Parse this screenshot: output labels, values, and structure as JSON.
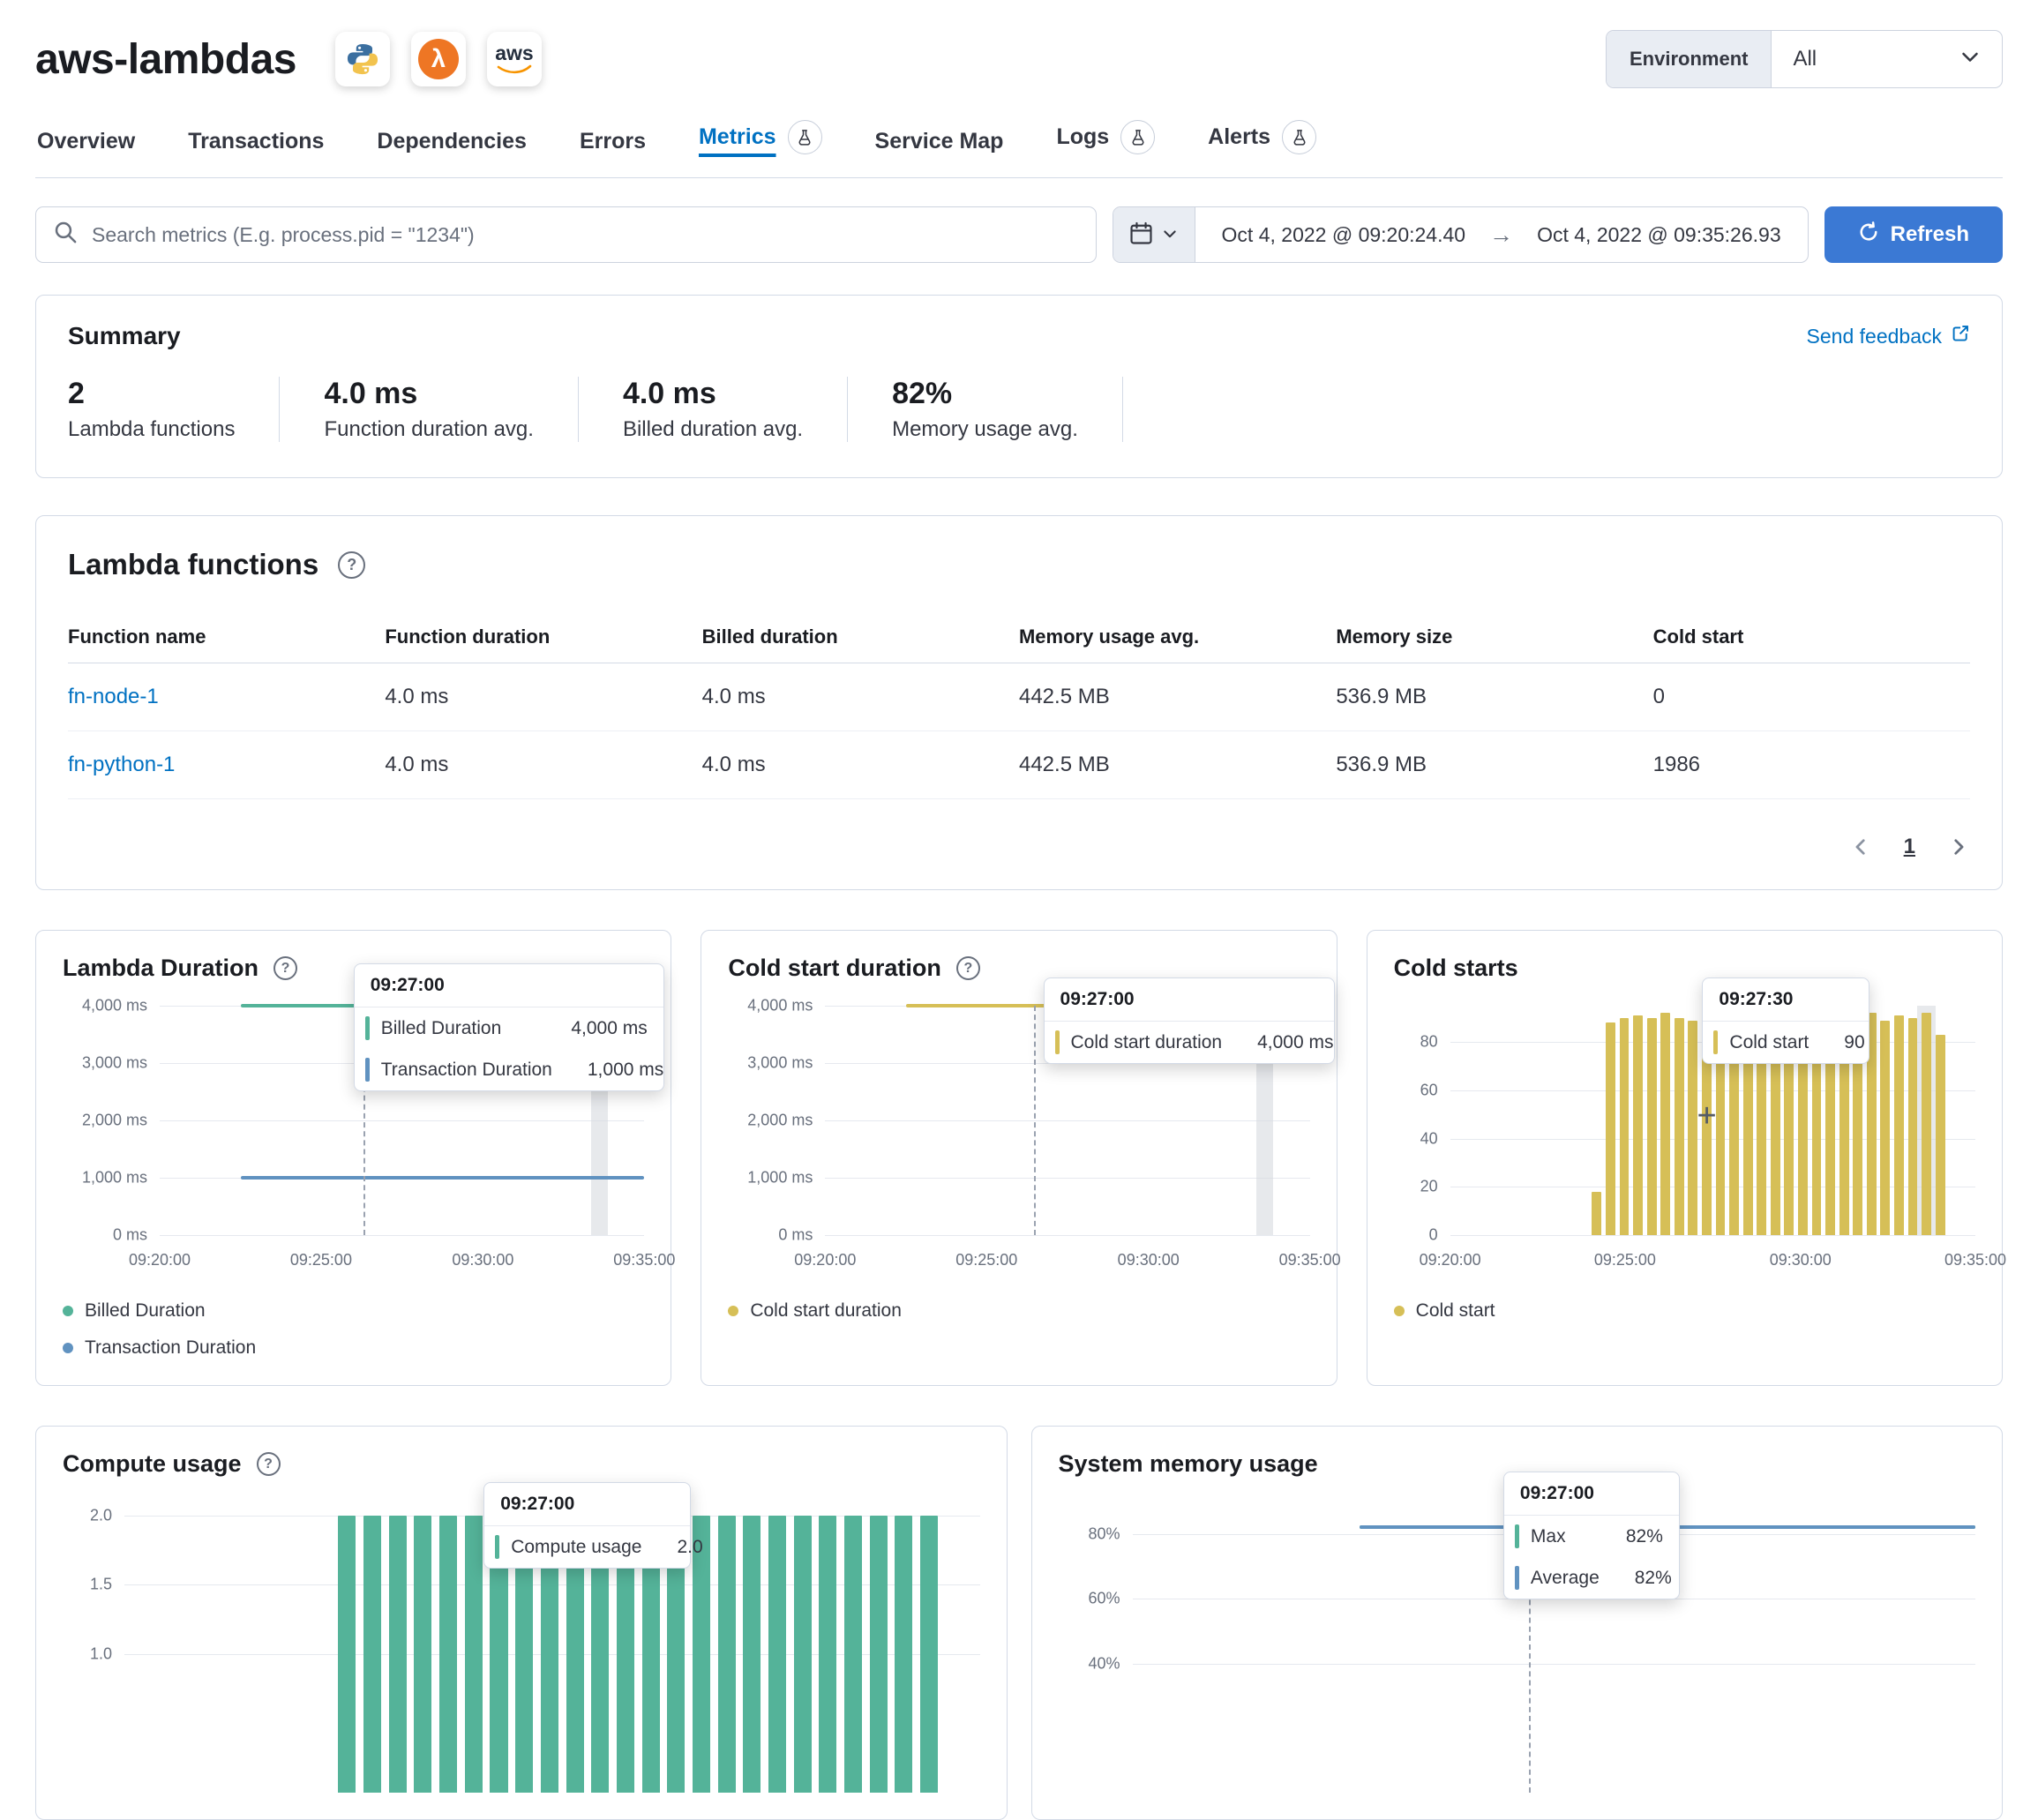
{
  "header": {
    "title": "aws-lambdas",
    "environment_label": "Environment",
    "environment_value": "All"
  },
  "tabs": [
    {
      "label": "Overview",
      "active": false,
      "beaker": false
    },
    {
      "label": "Transactions",
      "active": false,
      "beaker": false
    },
    {
      "label": "Dependencies",
      "active": false,
      "beaker": false
    },
    {
      "label": "Errors",
      "active": false,
      "beaker": false
    },
    {
      "label": "Metrics",
      "active": true,
      "beaker": true
    },
    {
      "label": "Service Map",
      "active": false,
      "beaker": false
    },
    {
      "label": "Logs",
      "active": false,
      "beaker": true
    },
    {
      "label": "Alerts",
      "active": false,
      "beaker": true
    }
  ],
  "toolbar": {
    "search_placeholder": "Search metrics (E.g. process.pid = \"1234\")",
    "date_start": "Oct 4, 2022 @ 09:20:24.40",
    "date_end": "Oct 4, 2022 @ 09:35:26.93",
    "refresh_label": "Refresh"
  },
  "summary": {
    "heading": "Summary",
    "feedback_link": "Send feedback",
    "stats": [
      {
        "value": "2",
        "label": "Lambda functions"
      },
      {
        "value": "4.0 ms",
        "label": "Function duration avg."
      },
      {
        "value": "4.0 ms",
        "label": "Billed duration avg."
      },
      {
        "value": "82%",
        "label": "Memory usage avg."
      }
    ]
  },
  "functions": {
    "heading": "Lambda functions",
    "columns": [
      "Function name",
      "Function duration",
      "Billed duration",
      "Memory usage avg.",
      "Memory size",
      "Cold start"
    ],
    "rows": [
      {
        "name": "fn-node-1",
        "function_duration": "4.0 ms",
        "billed_duration": "4.0 ms",
        "memory_usage_avg": "442.5 MB",
        "memory_size": "536.9 MB",
        "cold_start": "0"
      },
      {
        "name": "fn-python-1",
        "function_duration": "4.0 ms",
        "billed_duration": "4.0 ms",
        "memory_usage_avg": "442.5 MB",
        "memory_size": "536.9 MB",
        "cold_start": "1986"
      }
    ],
    "pagination_page": "1"
  },
  "chart_data": [
    {
      "id": "lambda-duration",
      "type": "line",
      "title": "Lambda Duration",
      "y_ticks": [
        "4,000 ms",
        "3,000 ms",
        "2,000 ms",
        "1,000 ms",
        "0 ms"
      ],
      "x_ticks": [
        "09:20:00",
        "09:25:00",
        "09:30:00",
        "09:35:00"
      ],
      "ylim": [
        0,
        4000
      ],
      "series": [
        {
          "name": "Billed Duration",
          "color": "#54b399",
          "value": 4000,
          "x_start": "09:22:30",
          "x_end": "09:27:00"
        },
        {
          "name": "Transaction Duration",
          "color": "#6092c0",
          "value": 1000,
          "x_start": "09:22:30",
          "x_end": "09:35:00"
        }
      ],
      "tooltip": {
        "time": "09:27:00",
        "rows": [
          {
            "label": "Billed Duration",
            "value": "4,000 ms"
          },
          {
            "label": "Transaction Duration",
            "value": "1,000 ms"
          }
        ]
      },
      "legend": [
        "Billed Duration",
        "Transaction Duration"
      ]
    },
    {
      "id": "cold-start-duration",
      "type": "line",
      "title": "Cold start duration",
      "y_ticks": [
        "4,000 ms",
        "3,000 ms",
        "2,000 ms",
        "1,000 ms",
        "0 ms"
      ],
      "x_ticks": [
        "09:20:00",
        "09:25:00",
        "09:30:00",
        "09:35:00"
      ],
      "ylim": [
        0,
        4000
      ],
      "series": [
        {
          "name": "Cold start duration",
          "color": "#d6bf57",
          "value": 4000,
          "x_start": "09:22:30",
          "x_end": "09:27:00"
        }
      ],
      "tooltip": {
        "time": "09:27:00",
        "rows": [
          {
            "label": "Cold start duration",
            "value": "4,000 ms"
          }
        ]
      },
      "legend": [
        "Cold start duration"
      ]
    },
    {
      "id": "cold-starts",
      "type": "bar",
      "title": "Cold starts",
      "y_ticks": [
        "80",
        "60",
        "40",
        "20",
        "0"
      ],
      "x_ticks": [
        "09:20:00",
        "09:25:00",
        "09:30:00",
        "09:35:00"
      ],
      "ylim": [
        0,
        95
      ],
      "bar_color": "#d6bf57",
      "values": [
        18,
        88,
        90,
        91,
        90,
        92,
        90,
        89,
        91,
        93,
        90,
        92,
        90,
        91,
        89,
        92,
        90,
        93,
        91,
        90,
        92,
        89,
        91,
        90,
        92,
        83
      ],
      "tooltip": {
        "time": "09:27:30",
        "rows": [
          {
            "label": "Cold start",
            "value": "90"
          }
        ]
      },
      "legend": [
        "Cold start"
      ]
    },
    {
      "id": "compute-usage",
      "type": "bar",
      "title": "Compute usage",
      "y_ticks": [
        "2.0",
        "1.5",
        "1.0"
      ],
      "ylim": [
        0,
        2.1
      ],
      "bar_color": "#54b399",
      "values": [
        2,
        2,
        2,
        2,
        2,
        2,
        2,
        2,
        2,
        2,
        2,
        2,
        2,
        2,
        2,
        2,
        2,
        2,
        2,
        2,
        2,
        2,
        2,
        2
      ],
      "tooltip": {
        "time": "09:27:00",
        "rows": [
          {
            "label": "Compute usage",
            "value": "2.0"
          }
        ]
      },
      "legend": []
    },
    {
      "id": "system-memory-usage",
      "type": "line",
      "title": "System memory usage",
      "y_ticks": [
        "80%",
        "60%",
        "40%"
      ],
      "ylim": [
        0,
        90
      ],
      "series": [
        {
          "name": "Max",
          "color": "#54b399",
          "value": 82
        },
        {
          "name": "Average",
          "color": "#6092c0",
          "value": 82
        }
      ],
      "tooltip": {
        "time": "09:27:00",
        "rows": [
          {
            "label": "Max",
            "value": "82%"
          },
          {
            "label": "Average",
            "value": "82%"
          }
        ]
      },
      "legend": []
    }
  ]
}
